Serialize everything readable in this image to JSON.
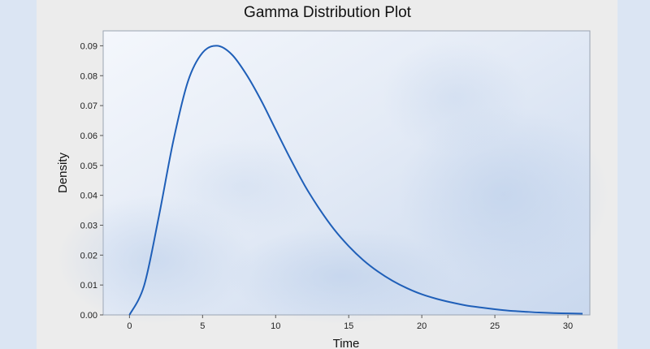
{
  "chart_data": {
    "type": "line",
    "title": "Gamma Distribution Plot",
    "xlabel": "Time",
    "ylabel": "Density",
    "xlim": [
      -1.8,
      31.5
    ],
    "ylim": [
      0,
      0.095
    ],
    "x_ticks": [
      "0",
      "5",
      "10",
      "15",
      "20",
      "25",
      "30"
    ],
    "y_ticks": [
      "0.00",
      "0.01",
      "0.02",
      "0.03",
      "0.04",
      "0.05",
      "0.06",
      "0.07",
      "0.08",
      "0.09"
    ],
    "grid": false,
    "series": [
      {
        "color": "#1f5fb8",
        "x": [
          0,
          1,
          2,
          3,
          4,
          5,
          6,
          7,
          8,
          9,
          10,
          11,
          12,
          13,
          14,
          15,
          16,
          17,
          18,
          19,
          20,
          21,
          22,
          23,
          24,
          25,
          26,
          27,
          28,
          29,
          30,
          31
        ],
        "y": [
          0.0,
          0.0098,
          0.0327,
          0.0582,
          0.0781,
          0.0877,
          0.09,
          0.0871,
          0.0804,
          0.0718,
          0.062,
          0.0523,
          0.0432,
          0.0354,
          0.0286,
          0.023,
          0.0183,
          0.0145,
          0.0114,
          0.0089,
          0.0069,
          0.0054,
          0.0042,
          0.0032,
          0.0025,
          0.0019,
          0.0014,
          0.0011,
          0.0008,
          0.0006,
          0.0005,
          0.0004
        ]
      }
    ]
  }
}
